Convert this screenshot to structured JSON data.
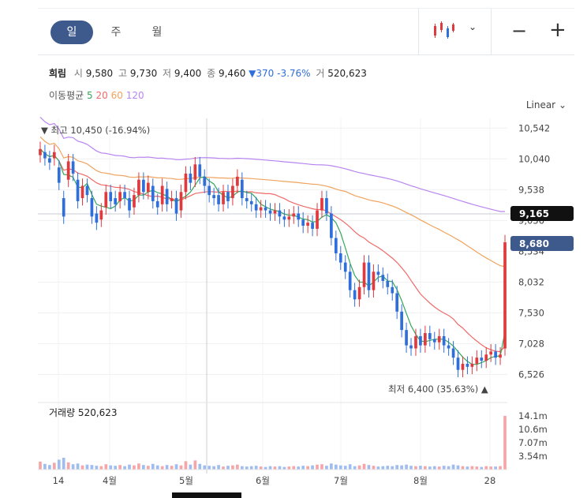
{
  "tabs": [
    {
      "label": "일",
      "active": true
    },
    {
      "label": "주",
      "active": false
    },
    {
      "label": "월",
      "active": false
    }
  ],
  "controls": {
    "chart_type_icon": "candlestick-icon",
    "dropdown_icon": "chevron-down-icon",
    "zoom_out": "−",
    "zoom_in": "+"
  },
  "info": {
    "name": "희림",
    "open_label": "시",
    "open": "9,580",
    "high_label": "고",
    "high": "9,730",
    "low_label": "저",
    "low": "9,400",
    "close_label": "종",
    "close": "9,460",
    "change": "▼370 -3.76%",
    "vol_label": "거",
    "vol": "520,623"
  },
  "ma": {
    "label": "이동평균",
    "p5": "5",
    "p20": "20",
    "p60": "60",
    "p120": "120"
  },
  "scale_label": "Linear",
  "max_label": "▼ 최고 10,450 (-16.94%)",
  "min_label": "최저 6,400 (35.63%) ▲",
  "volume_title": "거래량 520,623",
  "price_tag_cursor": "9,165",
  "price_tag_last": "8,680",
  "colors": {
    "up": "#e0393e",
    "down": "#2f6fdb",
    "ma5": "#35a85a",
    "ma20": "#f06a6a",
    "ma60": "#f0a35e",
    "ma120": "#b985f0",
    "tag_last": "#3e5a8c",
    "tag_cursor": "#111111"
  },
  "chart_data": {
    "type": "candlestick",
    "y_ticks": [
      "10,542",
      "10,040",
      "9,538",
      "9,036",
      "8,534",
      "8,032",
      "7,530",
      "7,028",
      "6,526"
    ],
    "y_range": [
      6300,
      10700
    ],
    "volume_ticks": [
      "14.1m",
      "10.6m",
      "7.07m",
      "3.54m"
    ],
    "volume_range": [
      0,
      17.6
    ],
    "x_labels": [
      "14",
      "4월",
      "5월",
      "6월",
      "7월",
      "8월",
      "28"
    ],
    "close": [
      10200,
      10050,
      9980,
      10150,
      9650,
      9100,
      10000,
      9800,
      9350,
      9600,
      9450,
      9100,
      9000,
      9200,
      9500,
      9350,
      9300,
      9500,
      9400,
      9200,
      9450,
      9700,
      9500,
      9650,
      9350,
      9250,
      9600,
      9300,
      9400,
      9150,
      9500,
      9800,
      9650,
      9950,
      9750,
      9600,
      9450,
      9400,
      9300,
      9500,
      9350,
      9600,
      9750,
      9400,
      9350,
      9300,
      9200,
      9250,
      9200,
      9150,
      9200,
      9100,
      9050,
      9100,
      9150,
      9050,
      8950,
      9000,
      8900,
      9200,
      9400,
      9150,
      8750,
      8500,
      8350,
      8200,
      7900,
      7750,
      7950,
      8350,
      7900,
      8200,
      8150,
      8050,
      7950,
      7850,
      7550,
      7250,
      7000,
      6950,
      7150,
      7000,
      7200,
      7100,
      7050,
      7150,
      7000,
      6950,
      6800,
      6600,
      6700,
      6650,
      6700,
      6800,
      6750,
      6850,
      6900,
      6800,
      6850,
      8680
    ],
    "open": [
      10100,
      10150,
      10050,
      10050,
      9900,
      9400,
      9700,
      10000,
      9700,
      9400,
      9600,
      9400,
      9150,
      9050,
      9250,
      9500,
      9400,
      9350,
      9500,
      9400,
      9250,
      9450,
      9700,
      9500,
      9600,
      9350,
      9300,
      9550,
      9350,
      9400,
      9200,
      9500,
      9800,
      9700,
      9950,
      9750,
      9600,
      9450,
      9450,
      9300,
      9500,
      9400,
      9600,
      9700,
      9400,
      9350,
      9300,
      9200,
      9250,
      9200,
      9150,
      9200,
      9100,
      9050,
      9100,
      9150,
      9050,
      8950,
      9000,
      8900,
      9200,
      9400,
      9150,
      8750,
      8500,
      8350,
      8200,
      7900,
      7750,
      7950,
      8350,
      7900,
      8200,
      8150,
      8050,
      7950,
      7850,
      7550,
      7250,
      7000,
      6950,
      7150,
      7000,
      7200,
      7100,
      7050,
      7150,
      7000,
      6950,
      6800,
      6600,
      6700,
      6650,
      6700,
      6800,
      6750,
      6850,
      6900,
      6800,
      6950
    ],
    "volume": [
      2.1,
      1.5,
      1.2,
      1.8,
      2.6,
      3.1,
      1.9,
      1.4,
      1.6,
      1.1,
      1.3,
      1.2,
      1.0,
      0.9,
      1.4,
      1.1,
      1.0,
      1.2,
      0.9,
      1.3,
      1.1,
      1.6,
      1.2,
      1.0,
      1.5,
      1.1,
      0.9,
      1.2,
      1.0,
      1.4,
      1.1,
      2.2,
      1.3,
      2.4,
      1.5,
      1.1,
      1.0,
      0.9,
      1.2,
      0.8,
      1.0,
      1.1,
      1.3,
      0.9,
      0.8,
      0.9,
      1.0,
      0.8,
      0.7,
      0.9,
      0.8,
      0.9,
      0.7,
      0.8,
      0.9,
      0.8,
      1.0,
      0.9,
      1.1,
      1.3,
      1.4,
      1.0,
      1.6,
      1.3,
      1.1,
      1.0,
      1.4,
      0.9,
      1.1,
      1.5,
      1.2,
      1.0,
      0.8,
      0.9,
      1.0,
      0.9,
      1.2,
      1.1,
      1.3,
      1.0,
      0.9,
      1.0,
      0.9,
      0.8,
      0.9,
      0.8,
      1.0,
      0.9,
      1.3,
      1.1,
      0.9,
      0.8,
      0.9,
      0.8,
      0.7,
      0.9,
      0.8,
      0.8,
      0.9,
      14.1
    ]
  }
}
